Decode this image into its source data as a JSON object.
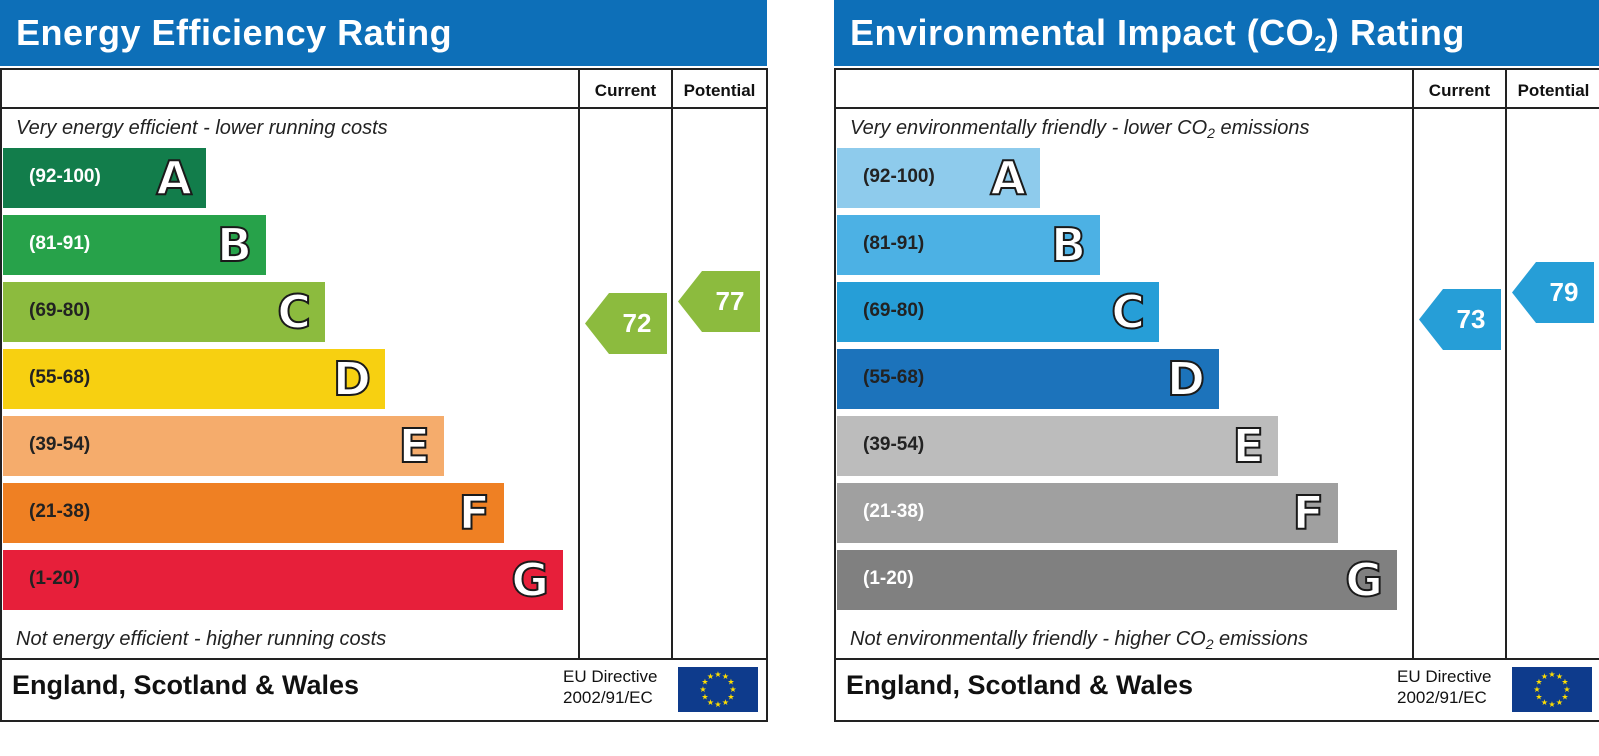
{
  "chart_data": [
    {
      "type": "bar",
      "title": "Energy Efficiency Rating",
      "columns": [
        "Current",
        "Potential"
      ],
      "top_caption": "Very energy efficient - lower running costs",
      "bottom_caption": "Not energy efficient - higher running costs",
      "categories": [
        "A",
        "B",
        "C",
        "D",
        "E",
        "F",
        "G"
      ],
      "ranges": [
        "(92-100)",
        "(81-91)",
        "(69-80)",
        "(55-68)",
        "(39-54)",
        "(21-38)",
        "(1-20)"
      ],
      "colors": [
        "#127d4b",
        "#27a24a",
        "#8cbb3e",
        "#f7d011",
        "#f5ac6c",
        "#ef8023",
        "#e71f3a"
      ],
      "range_text_colors": [
        "#ffffff",
        "#ffffff",
        "#222222",
        "#222222",
        "#222222",
        "#222222",
        "#222222"
      ],
      "current": {
        "value": 72,
        "band": "C",
        "color": "#8cbb3e"
      },
      "potential": {
        "value": 77,
        "band": "C",
        "color": "#8cbb3e"
      },
      "footer_country": "England, Scotland & Wales",
      "footer_directive": [
        "EU Directive",
        "2002/91/EC"
      ]
    },
    {
      "type": "bar",
      "title": "Environmental Impact (CO2) Rating",
      "columns": [
        "Current",
        "Potential"
      ],
      "top_caption": "Very environmentally friendly - lower CO2 emissions",
      "bottom_caption": "Not environmentally friendly - higher CO2 emissions",
      "categories": [
        "A",
        "B",
        "C",
        "D",
        "E",
        "F",
        "G"
      ],
      "ranges": [
        "(92-100)",
        "(81-91)",
        "(69-80)",
        "(55-68)",
        "(39-54)",
        "(21-38)",
        "(1-20)"
      ],
      "colors": [
        "#8ecbec",
        "#4cb1e4",
        "#269ed7",
        "#1c73bb",
        "#bcbcbc",
        "#a0a0a0",
        "#808080"
      ],
      "range_text_colors": [
        "#222222",
        "#222222",
        "#222222",
        "#222222",
        "#222222",
        "#ffffff",
        "#ffffff"
      ],
      "current": {
        "value": 73,
        "band": "C",
        "color": "#269ed7"
      },
      "potential": {
        "value": 79,
        "band": "C",
        "color": "#269ed7"
      },
      "footer_country": "England, Scotland & Wales",
      "footer_directive": [
        "EU Directive",
        "2002/91/EC"
      ]
    }
  ]
}
